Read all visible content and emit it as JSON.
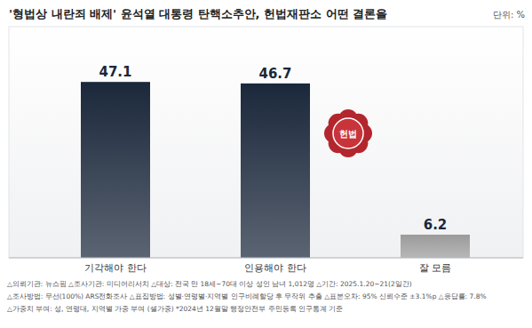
{
  "chart_data": {
    "type": "bar",
    "title": "'형법상 내란죄 배제' 윤석열 대통령 탄핵소추안, 헌법재판소 어떤 결론을",
    "unit_label": "단위: %",
    "categories": [
      "기각해야 한다",
      "인용해야 한다",
      "잘 모름"
    ],
    "values": [
      47.1,
      46.7,
      6.2
    ],
    "colors": [
      "#1b283b",
      "#1b283b",
      "#9b9b9b"
    ],
    "ylim": [
      0,
      50
    ],
    "grid": false,
    "data_labels": true,
    "tick_labels": "x",
    "emblem_label": "헌법",
    "notes": [
      "△의뢰기관: 뉴스핌 △조사기관: 미디어리서치 △대상: 전국 만 18세~70대 이상 성인 남녀 1,012명 △기간: 2025.1.20~21(2일간)",
      "△조사방법: 무선(100%) ARS전화조사 △표집방법: 성별·연령별·지역별 인구비례할당 후 무작위 추출 △표본오차: 95% 신뢰수준 ±3.1%p △응답률: 7.8%",
      "△가중치 부여: 성, 연령대, 지역별 가중 부여 (셀가중) *2024년 12월말 행정안전부 주민등록 인구통계 기준"
    ]
  }
}
